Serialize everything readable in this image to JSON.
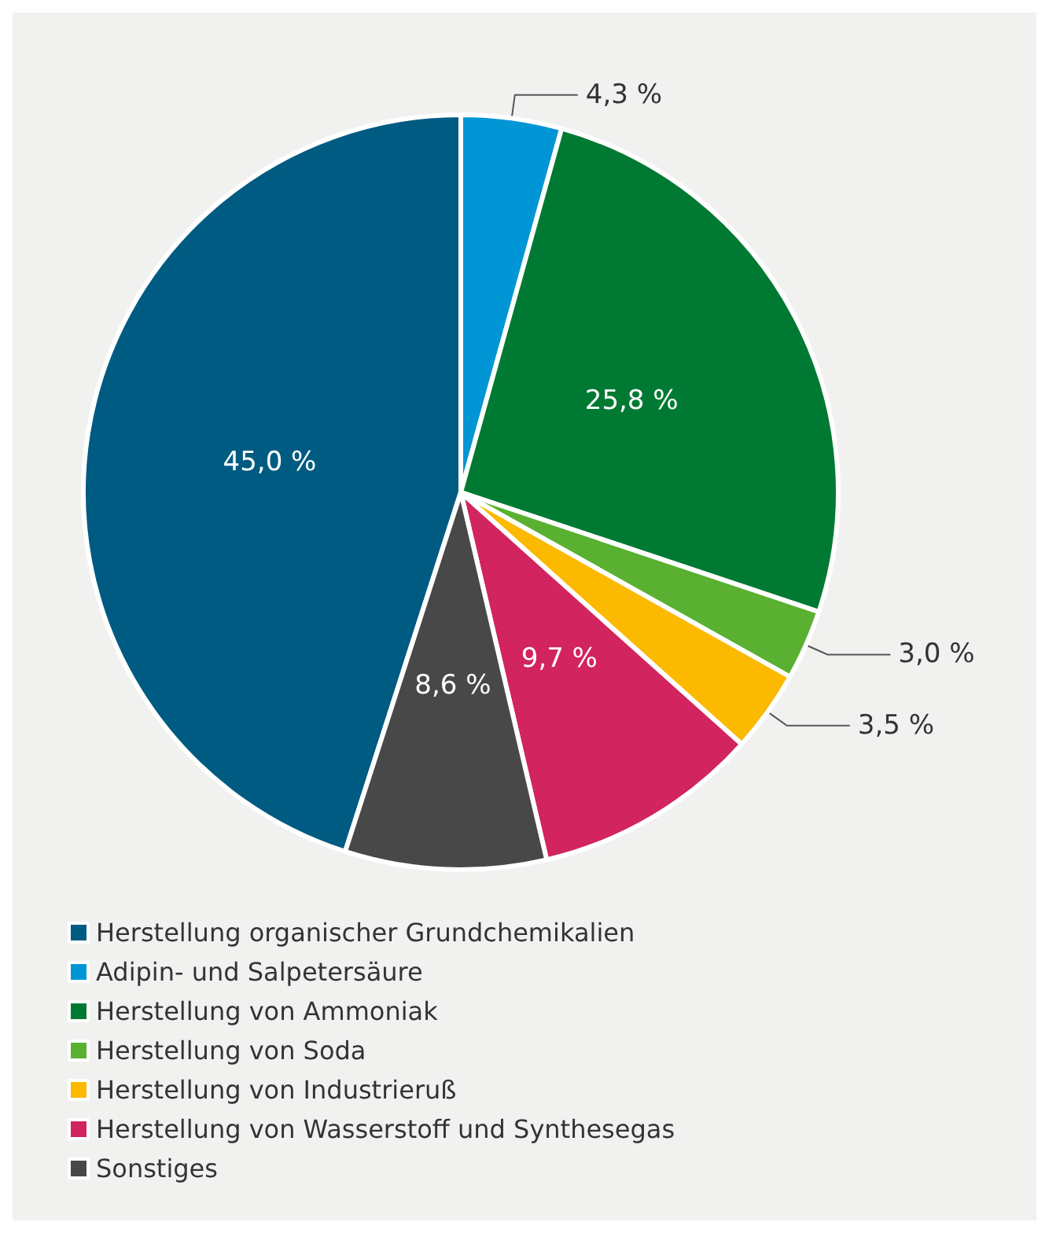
{
  "chart_data": {
    "type": "pie",
    "categories": [
      "Herstellung organischer Grundchemikalien",
      "Adipin- und Salpetersäure",
      "Herstellung von Ammoniak",
      "Herstellung von Soda",
      "Herstellung von Industrieruß",
      "Herstellung von Wasserstoff und Synthesegas",
      "Sonstiges"
    ],
    "values": [
      45.0,
      4.3,
      25.8,
      3.0,
      3.5,
      9.7,
      8.6
    ],
    "value_labels": [
      "45,0 %",
      "4,3 %",
      "25,8 %",
      "3,0 %",
      "3,5 %",
      "9,7 %",
      "8,6 %"
    ],
    "colors": [
      "#005b82",
      "#0096d6",
      "#007a33",
      "#59b031",
      "#fbb900",
      "#d2245f",
      "#484848"
    ],
    "legend": "bottom left"
  }
}
